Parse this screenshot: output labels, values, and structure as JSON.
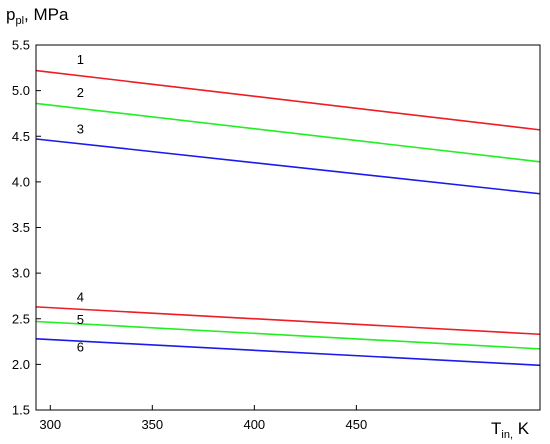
{
  "chart_data": {
    "type": "line",
    "ylabel": {
      "main": "p",
      "sub": "pl",
      "rest": ", MPa"
    },
    "xlabel": {
      "main": "T",
      "sub": "in,",
      "rest": " K"
    },
    "xlim": [
      293,
      540
    ],
    "ylim": [
      1.5,
      5.5
    ],
    "xticks": [
      300,
      350,
      400,
      450
    ],
    "yticks": [
      "1.5",
      "2.0",
      "2.5",
      "3.0",
      "3.5",
      "4.0",
      "4.5",
      "5.0",
      "5.5"
    ],
    "grid": false,
    "series": [
      {
        "name": "1",
        "color": "#ee1c24",
        "x": [
          293,
          540
        ],
        "y": [
          5.22,
          4.57
        ],
        "label_x": 313,
        "label_y": 5.29
      },
      {
        "name": "2",
        "color": "#22ee22",
        "x": [
          293,
          540
        ],
        "y": [
          4.86,
          4.22
        ],
        "label_x": 313,
        "label_y": 4.93
      },
      {
        "name": "3",
        "color": "#1a1aee",
        "x": [
          293,
          540
        ],
        "y": [
          4.47,
          3.87
        ],
        "label_x": 313,
        "label_y": 4.53
      },
      {
        "name": "4",
        "color": "#ee1c24",
        "x": [
          293,
          540
        ],
        "y": [
          2.63,
          2.33
        ],
        "label_x": 313,
        "label_y": 2.69
      },
      {
        "name": "5",
        "color": "#22ee22",
        "x": [
          293,
          540
        ],
        "y": [
          2.47,
          2.17
        ],
        "label_x": 313,
        "label_y": 2.44
      },
      {
        "name": "6",
        "color": "#1a1aee",
        "x": [
          293,
          540
        ],
        "y": [
          2.28,
          1.99
        ],
        "label_x": 313,
        "label_y": 2.14
      }
    ]
  }
}
